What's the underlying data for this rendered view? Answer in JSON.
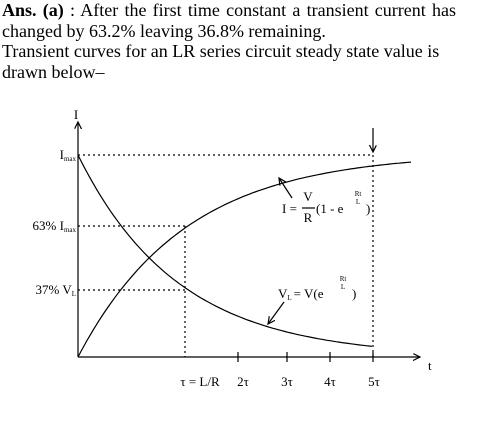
{
  "answer": {
    "label": "Ans. (a)",
    "text": ": After the first time constant a transient current has changed by 63.2% leaving 36.8% remaining."
  },
  "intro": "Transient curves for an LR series circuit steady state value is drawn below–",
  "diagram": {
    "y_axis": "I",
    "x_axis": "t",
    "levels": [
      {
        "text": "I",
        "sub": "max"
      },
      {
        "text": "63% I",
        "sub": "max"
      },
      {
        "text": "37% V",
        "sub": "L"
      }
    ],
    "x_ticks": [
      "τ = L/R",
      "2τ",
      "3τ",
      "4τ",
      "5τ"
    ],
    "current_formula": {
      "lhs": "I =",
      "num": "V",
      "den": "R",
      "body": "(1 - e",
      "exp_num": "Rt",
      "exp_den": "L",
      "close": ")"
    },
    "voltage_formula": {
      "lhs": "V",
      "sub": "L",
      "body": "= V(e",
      "exp_num": "Rt",
      "exp_den": "L",
      "close": ")"
    }
  }
}
